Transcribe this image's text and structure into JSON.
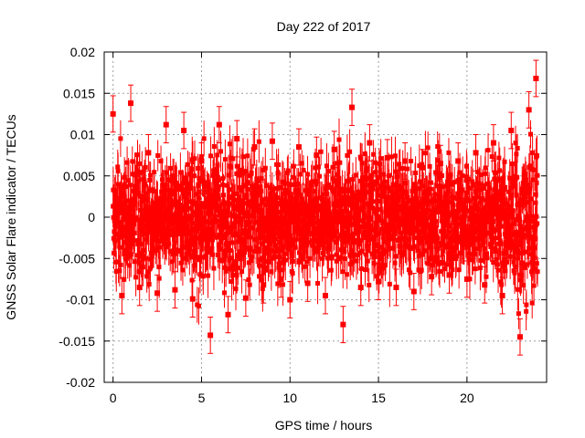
{
  "chart_data": {
    "type": "scatter",
    "title": "Day 222 of 2017",
    "xlabel": "GPS time / hours",
    "ylabel": "GNSS Solar Flare indicator / TECUs",
    "xlim": [
      -0.5,
      24.5
    ],
    "ylim": [
      -0.02,
      0.02
    ],
    "xticks": [
      0,
      5,
      10,
      15,
      20
    ],
    "yticks": [
      -0.02,
      -0.015,
      -0.01,
      -0.005,
      0,
      0.005,
      0.01,
      0.015,
      0.02
    ],
    "ytick_labels": [
      "-0.02",
      "-0.015",
      "-0.01",
      "-0.005",
      "0",
      "0.005",
      "0.01",
      "0.015",
      "0.02"
    ],
    "grid": true,
    "marker_color": "#ff0000",
    "error_bars": true,
    "series": [
      {
        "x": [
          0.0,
          0.5,
          1.0,
          1.5,
          2.0,
          2.5,
          3.0,
          3.5,
          4.0,
          4.5,
          5.0,
          5.5,
          6.0,
          6.5,
          7.0,
          7.5,
          8.0,
          8.5,
          9.0,
          9.5,
          10.0,
          10.5,
          11.0,
          11.5,
          12.0,
          12.5,
          13.0,
          13.5,
          14.0,
          14.5,
          15.0,
          15.5,
          16.0,
          16.5,
          17.0,
          17.5,
          18.0,
          18.5,
          19.0,
          19.5,
          20.0,
          20.5,
          21.0,
          21.5,
          22.0,
          22.5,
          23.0,
          23.5,
          23.9
        ],
        "y": [
          0.0125,
          -0.0095,
          0.0138,
          -0.0085,
          0.0078,
          -0.0092,
          0.0112,
          -0.0088,
          0.0105,
          -0.0099,
          0.0068,
          -0.0143,
          0.0112,
          -0.0118,
          0.0095,
          -0.0098,
          0.0085,
          -0.0082,
          0.0092,
          -0.0075,
          -0.01,
          0.0085,
          -0.008,
          0.0075,
          -0.0095,
          0.0082,
          -0.013,
          0.0133,
          -0.0085,
          0.009,
          -0.0078,
          0.0072,
          -0.0085,
          0.0068,
          -0.009,
          0.006,
          -0.0072,
          0.0065,
          -0.007,
          0.0068,
          -0.0075,
          0.0078,
          -0.0082,
          0.009,
          -0.0095,
          0.0105,
          -0.0145,
          0.013,
          0.0168
        ]
      }
    ]
  }
}
